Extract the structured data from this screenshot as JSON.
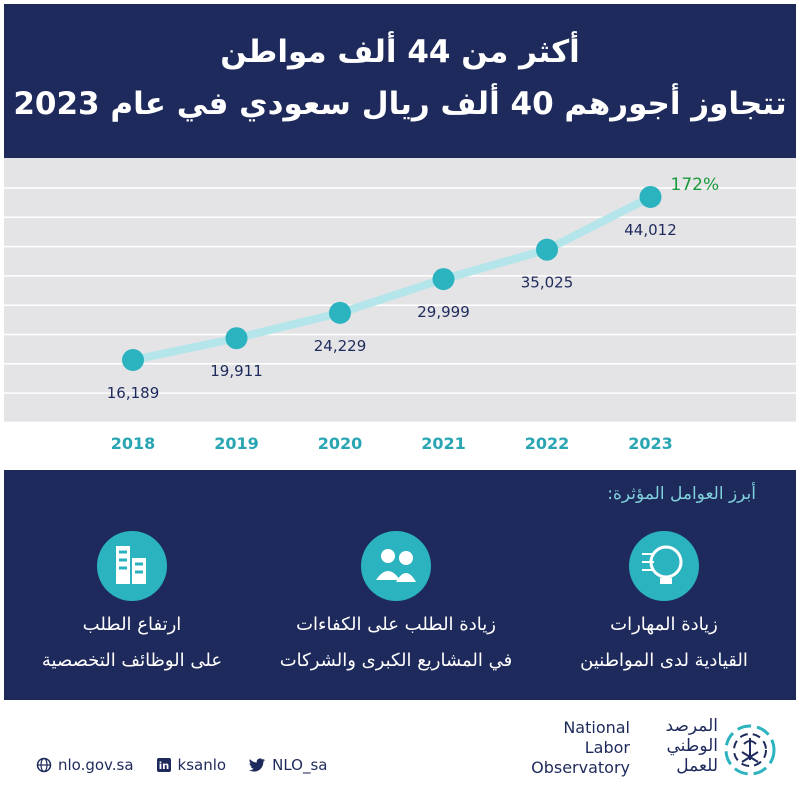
{
  "header": {
    "title_lines": [
      "أكثر من 44 ألف مواطن",
      "تتجاوز أجورهم 40 ألف ريال سعودي في عام 2023"
    ]
  },
  "chart_data": {
    "type": "line",
    "categories": [
      "2018",
      "2019",
      "2020",
      "2021",
      "2022",
      "2023"
    ],
    "values": [
      16189,
      19911,
      24229,
      29999,
      35025,
      44012
    ],
    "value_labels": [
      "16,189",
      "19,911",
      "24,229",
      "29,999",
      "35,025",
      "44,012"
    ],
    "color": "#2bb3bf",
    "annotation": "172%"
  },
  "factors": {
    "title": "أبرز العوامل المؤثرة:",
    "items": [
      {
        "lines": [
          "زيادة المهارات",
          "القيادية لدى المواطنين"
        ]
      },
      {
        "lines": [
          "زيادة الطلب على الكفاءات",
          "في المشاريع الكبرى والشركات"
        ]
      },
      {
        "lines": [
          "ارتفاع الطلب",
          "على الوظائف التخصصية"
        ]
      }
    ]
  },
  "footer": {
    "links": [
      "nlo.gov.sa",
      "ksanlo",
      "NLO_sa"
    ],
    "logo_arabic": [
      "المرصد",
      "الوطني",
      "للعمل"
    ],
    "logo_english": [
      "National",
      "Labor",
      "Observatory"
    ]
  }
}
